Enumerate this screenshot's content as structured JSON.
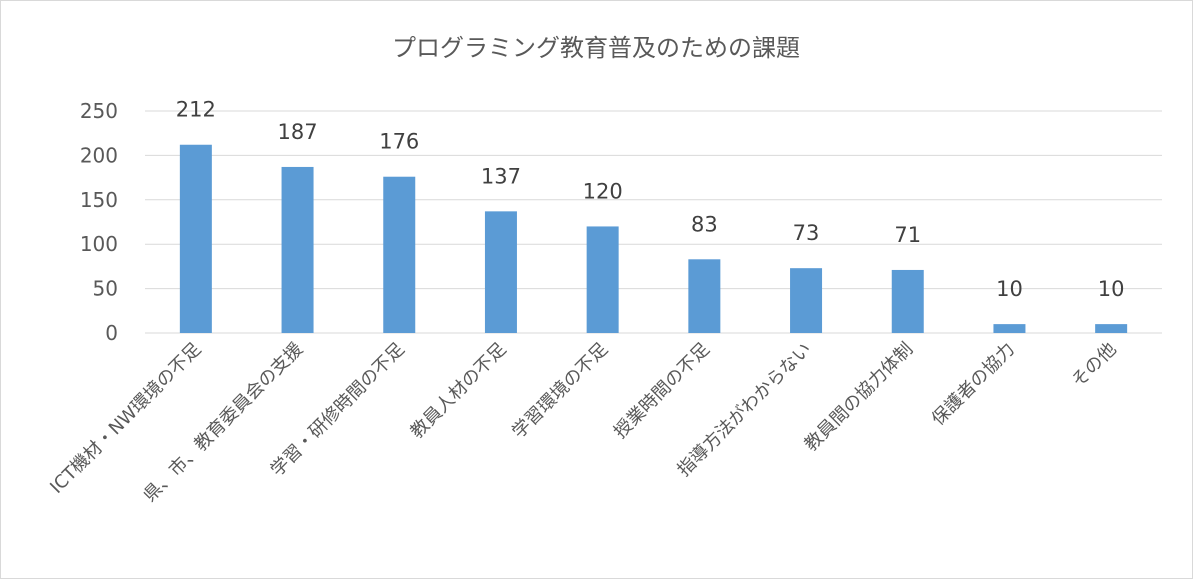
{
  "chart_data": {
    "type": "bar",
    "title": "プログラミング教育普及のための課題",
    "xlabel": "",
    "ylabel": "",
    "categories": [
      "ICT機材・NW環境の不足",
      "県、市、教育委員会の支援",
      "学習・研修時間の不足",
      "教員人材の不足",
      "学習環境の不足",
      "授業時間の不足",
      "指導方法がわからない",
      "教員間の協力体制",
      "保護者の協力",
      "その他"
    ],
    "values": [
      212,
      187,
      176,
      137,
      120,
      83,
      73,
      71,
      10,
      10
    ],
    "ylim": [
      0,
      250
    ],
    "yticks": [
      0,
      50,
      100,
      150,
      200,
      250
    ],
    "grid": true,
    "legend": "none",
    "bar_color": "#5b9bd5",
    "grid_color": "#d9d9d9"
  }
}
